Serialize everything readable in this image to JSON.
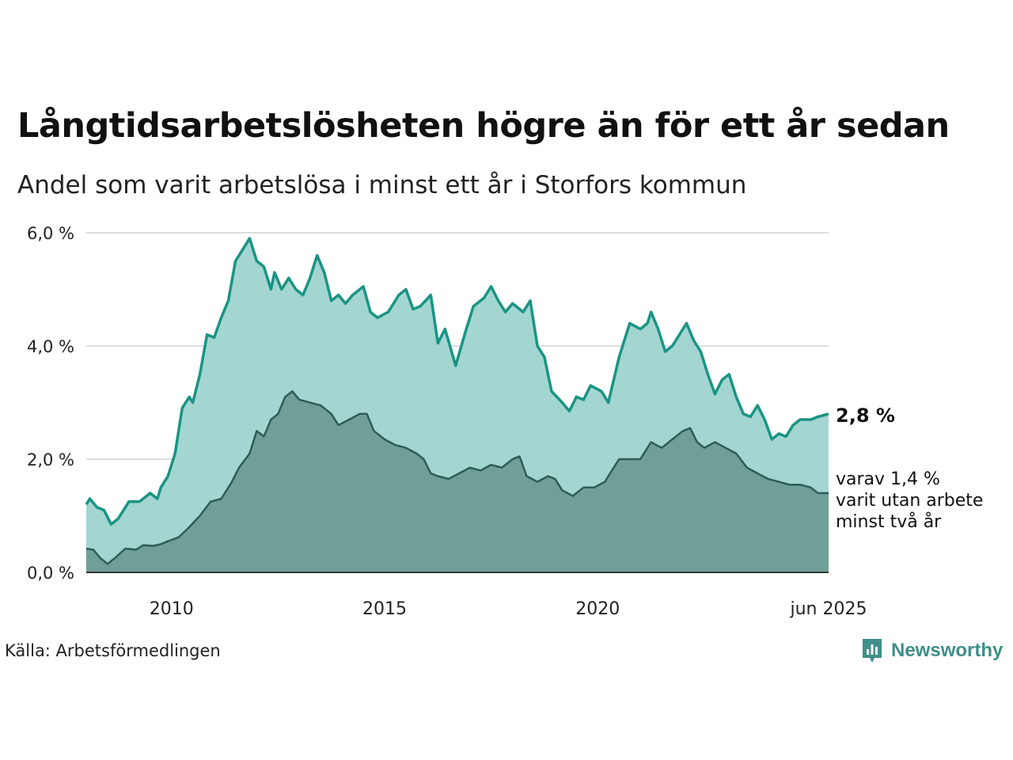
{
  "title": "Långtidsarbetslösheten högre än för ett år sedan",
  "subtitle": "Andel som varit arbetslösa i minst ett år i Storfors kommun",
  "source": "Källa: Arbetsförmedlingen",
  "brand": "Newsworthy",
  "colors": {
    "total_line": "#1a9484",
    "total_fill": "#a3d6d1",
    "long_line": "#2f5c56",
    "long_fill": "#6f9f98",
    "grid": "#dddddd",
    "axis": "#333333"
  },
  "chart_data": {
    "type": "area",
    "x_start": "2008-01",
    "x_end": "2025-06",
    "frequency": "monthly",
    "xlim": [
      "2008-01",
      "2025-06"
    ],
    "ylim": [
      0,
      6
    ],
    "grid": true,
    "y_ticks": [
      "6,0 %",
      "4,0 %",
      "2,0 %",
      "0,0 %"
    ],
    "y_tick_values": [
      6,
      4,
      2,
      0
    ],
    "x_ticks": [
      "2010",
      "2015",
      "2020",
      "jun 2025"
    ],
    "x_tick_dates": [
      "2010-01",
      "2015-01",
      "2020-01",
      "2025-06"
    ],
    "annotations": {
      "total_label": "2,8 %",
      "long_label": [
        "varav 1,4 %",
        "varit utan arbete",
        "minst två år"
      ]
    },
    "series": [
      {
        "key": "total",
        "keypoints": [
          [
            "2008-01",
            1.2
          ],
          [
            "2008-02",
            1.3
          ],
          [
            "2008-04",
            1.15
          ],
          [
            "2008-06",
            1.1
          ],
          [
            "2008-08",
            0.85
          ],
          [
            "2008-10",
            0.95
          ],
          [
            "2009-01",
            1.25
          ],
          [
            "2009-04",
            1.25
          ],
          [
            "2009-07",
            1.4
          ],
          [
            "2009-09",
            1.3
          ],
          [
            "2009-10",
            1.5
          ],
          [
            "2009-12",
            1.7
          ],
          [
            "2010-02",
            2.1
          ],
          [
            "2010-04",
            2.9
          ],
          [
            "2010-06",
            3.1
          ],
          [
            "2010-07",
            3.0
          ],
          [
            "2010-09",
            3.5
          ],
          [
            "2010-11",
            4.2
          ],
          [
            "2011-01",
            4.15
          ],
          [
            "2011-03",
            4.5
          ],
          [
            "2011-05",
            4.8
          ],
          [
            "2011-07",
            5.5
          ],
          [
            "2011-09",
            5.7
          ],
          [
            "2011-11",
            5.9
          ],
          [
            "2012-01",
            5.5
          ],
          [
            "2012-03",
            5.4
          ],
          [
            "2012-05",
            5.0
          ],
          [
            "2012-06",
            5.3
          ],
          [
            "2012-08",
            5.0
          ],
          [
            "2012-10",
            5.2
          ],
          [
            "2012-12",
            5.0
          ],
          [
            "2013-02",
            4.9
          ],
          [
            "2013-04",
            5.2
          ],
          [
            "2013-06",
            5.6
          ],
          [
            "2013-08",
            5.3
          ],
          [
            "2013-10",
            4.8
          ],
          [
            "2013-12",
            4.9
          ],
          [
            "2014-02",
            4.75
          ],
          [
            "2014-04",
            4.9
          ],
          [
            "2014-07",
            5.05
          ],
          [
            "2014-09",
            4.6
          ],
          [
            "2014-11",
            4.5
          ],
          [
            "2015-02",
            4.6
          ],
          [
            "2015-05",
            4.9
          ],
          [
            "2015-07",
            5.0
          ],
          [
            "2015-09",
            4.65
          ],
          [
            "2015-11",
            4.7
          ],
          [
            "2016-02",
            4.9
          ],
          [
            "2016-04",
            4.05
          ],
          [
            "2016-06",
            4.3
          ],
          [
            "2016-09",
            3.65
          ],
          [
            "2016-12",
            4.3
          ],
          [
            "2017-02",
            4.7
          ],
          [
            "2017-05",
            4.85
          ],
          [
            "2017-07",
            5.05
          ],
          [
            "2017-09",
            4.8
          ],
          [
            "2017-11",
            4.6
          ],
          [
            "2018-01",
            4.75
          ],
          [
            "2018-04",
            4.6
          ],
          [
            "2018-06",
            4.8
          ],
          [
            "2018-08",
            4.0
          ],
          [
            "2018-10",
            3.8
          ],
          [
            "2018-12",
            3.2
          ],
          [
            "2019-03",
            3.0
          ],
          [
            "2019-05",
            2.85
          ],
          [
            "2019-07",
            3.1
          ],
          [
            "2019-09",
            3.05
          ],
          [
            "2019-11",
            3.3
          ],
          [
            "2020-02",
            3.2
          ],
          [
            "2020-04",
            3.0
          ],
          [
            "2020-07",
            3.8
          ],
          [
            "2020-10",
            4.4
          ],
          [
            "2021-01",
            4.3
          ],
          [
            "2021-03",
            4.4
          ],
          [
            "2021-04",
            4.6
          ],
          [
            "2021-06",
            4.3
          ],
          [
            "2021-08",
            3.9
          ],
          [
            "2021-10",
            4.0
          ],
          [
            "2021-12",
            4.2
          ],
          [
            "2022-02",
            4.4
          ],
          [
            "2022-04",
            4.1
          ],
          [
            "2022-06",
            3.9
          ],
          [
            "2022-08",
            3.5
          ],
          [
            "2022-10",
            3.15
          ],
          [
            "2022-12",
            3.4
          ],
          [
            "2023-02",
            3.5
          ],
          [
            "2023-04",
            3.1
          ],
          [
            "2023-06",
            2.8
          ],
          [
            "2023-08",
            2.75
          ],
          [
            "2023-10",
            2.95
          ],
          [
            "2023-12",
            2.7
          ],
          [
            "2024-02",
            2.35
          ],
          [
            "2024-04",
            2.45
          ],
          [
            "2024-06",
            2.4
          ],
          [
            "2024-08",
            2.6
          ],
          [
            "2024-10",
            2.7
          ],
          [
            "2025-01",
            2.7
          ],
          [
            "2025-03",
            2.75
          ],
          [
            "2025-06",
            2.8
          ]
        ]
      },
      {
        "key": "long",
        "keypoints": [
          [
            "2008-01",
            0.42
          ],
          [
            "2008-03",
            0.4
          ],
          [
            "2008-05",
            0.25
          ],
          [
            "2008-07",
            0.15
          ],
          [
            "2008-09",
            0.25
          ],
          [
            "2008-12",
            0.42
          ],
          [
            "2009-03",
            0.4
          ],
          [
            "2009-05",
            0.48
          ],
          [
            "2009-08",
            0.47
          ],
          [
            "2009-10",
            0.5
          ],
          [
            "2009-12",
            0.55
          ],
          [
            "2010-03",
            0.62
          ],
          [
            "2010-06",
            0.8
          ],
          [
            "2010-09",
            1.0
          ],
          [
            "2010-12",
            1.25
          ],
          [
            "2011-03",
            1.3
          ],
          [
            "2011-06",
            1.6
          ],
          [
            "2011-08",
            1.85
          ],
          [
            "2011-11",
            2.1
          ],
          [
            "2012-01",
            2.5
          ],
          [
            "2012-03",
            2.4
          ],
          [
            "2012-05",
            2.7
          ],
          [
            "2012-07",
            2.8
          ],
          [
            "2012-09",
            3.1
          ],
          [
            "2012-11",
            3.2
          ],
          [
            "2013-01",
            3.05
          ],
          [
            "2013-04",
            3.0
          ],
          [
            "2013-07",
            2.95
          ],
          [
            "2013-10",
            2.8
          ],
          [
            "2013-12",
            2.6
          ],
          [
            "2014-03",
            2.7
          ],
          [
            "2014-06",
            2.8
          ],
          [
            "2014-08",
            2.8
          ],
          [
            "2014-10",
            2.5
          ],
          [
            "2015-01",
            2.35
          ],
          [
            "2015-04",
            2.25
          ],
          [
            "2015-07",
            2.2
          ],
          [
            "2015-10",
            2.1
          ],
          [
            "2015-12",
            2.0
          ],
          [
            "2016-02",
            1.75
          ],
          [
            "2016-04",
            1.7
          ],
          [
            "2016-07",
            1.65
          ],
          [
            "2016-10",
            1.75
          ],
          [
            "2017-01",
            1.85
          ],
          [
            "2017-04",
            1.8
          ],
          [
            "2017-07",
            1.9
          ],
          [
            "2017-10",
            1.85
          ],
          [
            "2018-01",
            2.0
          ],
          [
            "2018-03",
            2.05
          ],
          [
            "2018-05",
            1.7
          ],
          [
            "2018-08",
            1.6
          ],
          [
            "2018-11",
            1.7
          ],
          [
            "2019-01",
            1.65
          ],
          [
            "2019-03",
            1.45
          ],
          [
            "2019-06",
            1.35
          ],
          [
            "2019-09",
            1.5
          ],
          [
            "2019-12",
            1.5
          ],
          [
            "2020-03",
            1.6
          ],
          [
            "2020-05",
            1.8
          ],
          [
            "2020-07",
            2.0
          ],
          [
            "2020-10",
            2.0
          ],
          [
            "2021-01",
            2.0
          ],
          [
            "2021-04",
            2.3
          ],
          [
            "2021-07",
            2.2
          ],
          [
            "2021-10",
            2.35
          ],
          [
            "2022-01",
            2.5
          ],
          [
            "2022-03",
            2.55
          ],
          [
            "2022-05",
            2.3
          ],
          [
            "2022-07",
            2.2
          ],
          [
            "2022-10",
            2.3
          ],
          [
            "2023-01",
            2.2
          ],
          [
            "2023-04",
            2.1
          ],
          [
            "2023-07",
            1.85
          ],
          [
            "2023-10",
            1.75
          ],
          [
            "2024-01",
            1.65
          ],
          [
            "2024-04",
            1.6
          ],
          [
            "2024-07",
            1.55
          ],
          [
            "2024-10",
            1.55
          ],
          [
            "2025-01",
            1.5
          ],
          [
            "2025-03",
            1.4
          ],
          [
            "2025-06",
            1.4
          ]
        ]
      }
    ]
  }
}
